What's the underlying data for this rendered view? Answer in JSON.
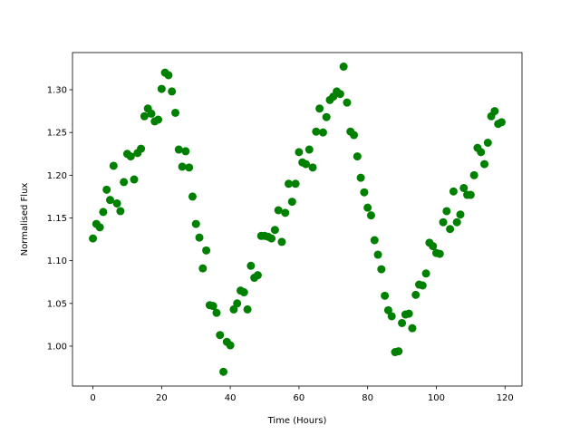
{
  "chart_data": {
    "type": "scatter",
    "xlabel": "Time (Hours)",
    "ylabel": "Normalised Flux",
    "color": "#008000",
    "x": [
      0,
      1,
      2,
      3,
      4,
      5,
      6,
      7,
      8,
      9,
      10,
      11,
      12,
      13,
      14,
      15,
      16,
      17,
      18,
      19,
      20,
      21,
      22,
      23,
      24,
      25,
      26,
      27,
      28,
      29,
      30,
      31,
      32,
      33,
      34,
      35,
      36,
      37,
      38,
      39,
      40,
      41,
      42,
      43,
      44,
      45,
      46,
      47,
      48,
      49,
      50,
      51,
      52,
      53,
      54,
      55,
      56,
      57,
      58,
      59,
      60,
      61,
      62,
      63,
      64,
      65,
      66,
      67,
      68,
      69,
      70,
      71,
      72,
      73,
      74,
      75,
      76,
      77,
      78,
      79,
      80,
      81,
      82,
      83,
      84,
      85,
      86,
      87,
      88,
      89,
      90,
      91,
      92,
      93,
      94,
      95,
      96,
      97,
      98,
      99,
      100,
      101,
      102,
      103,
      104,
      105,
      106,
      107,
      108,
      109,
      110,
      111,
      112,
      113,
      114,
      115,
      116,
      117,
      118,
      119
    ],
    "values": [
      1.126,
      1.143,
      1.139,
      1.157,
      1.183,
      1.171,
      1.211,
      1.167,
      1.158,
      1.192,
      1.225,
      1.222,
      1.195,
      1.226,
      1.231,
      1.269,
      1.278,
      1.272,
      1.263,
      1.265,
      1.301,
      1.32,
      1.317,
      1.298,
      1.273,
      1.23,
      1.21,
      1.228,
      1.209,
      1.175,
      1.143,
      1.127,
      1.091,
      1.112,
      1.048,
      1.047,
      1.039,
      1.013,
      0.97,
      1.005,
      1.001,
      1.043,
      1.05,
      1.065,
      1.063,
      1.043,
      1.094,
      1.08,
      1.083,
      1.129,
      1.129,
      1.128,
      1.126,
      1.136,
      1.159,
      1.122,
      1.156,
      1.19,
      1.169,
      1.19,
      1.227,
      1.215,
      1.213,
      1.23,
      1.209,
      1.251,
      1.278,
      1.25,
      1.268,
      1.288,
      1.292,
      1.298,
      1.295,
      1.327,
      1.285,
      1.251,
      1.247,
      1.222,
      1.197,
      1.18,
      1.162,
      1.153,
      1.124,
      1.107,
      1.09,
      1.059,
      1.042,
      1.035,
      0.993,
      0.994,
      1.027,
      1.037,
      1.038,
      1.021,
      1.06,
      1.072,
      1.071,
      1.085,
      1.121,
      1.117,
      1.109,
      1.108,
      1.145,
      1.158,
      1.137,
      1.181,
      1.145,
      1.154,
      1.185,
      1.177,
      1.177,
      1.2,
      1.232,
      1.227,
      1.213,
      1.238,
      1.269,
      1.275,
      1.26,
      1.262
    ],
    "xlim": [
      -5.95,
      124.95
    ],
    "ylim": [
      0.9533,
      1.3435
    ],
    "xticks": [
      0,
      20,
      40,
      60,
      80,
      100,
      120
    ],
    "yticks": [
      {
        "value": 1.0,
        "label": "1.00"
      },
      {
        "value": 1.05,
        "label": "1.05"
      },
      {
        "value": 1.1,
        "label": "1.10"
      },
      {
        "value": 1.15,
        "label": "1.15"
      },
      {
        "value": 1.2,
        "label": "1.20"
      },
      {
        "value": 1.25,
        "label": "1.25"
      },
      {
        "value": 1.3,
        "label": "1.30"
      }
    ]
  }
}
